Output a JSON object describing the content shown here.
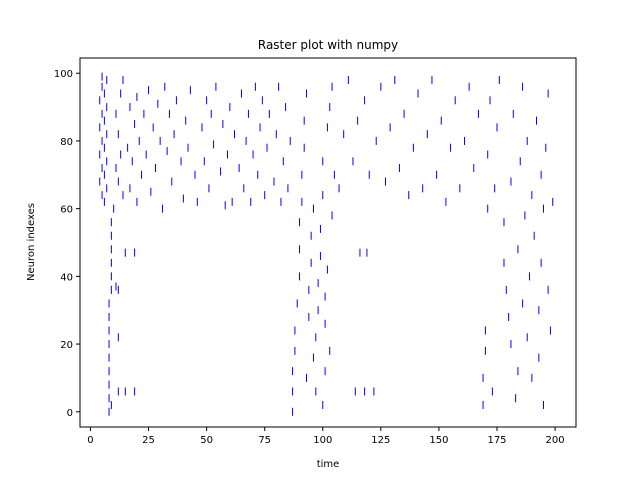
{
  "chart_data": {
    "type": "raster",
    "title": "Raster plot with numpy",
    "xlabel": "time",
    "ylabel": "Neuron indexes",
    "xlim": [
      -4.5,
      209
    ],
    "ylim": [
      -4.5,
      104.5
    ],
    "xticks": [
      0,
      25,
      50,
      75,
      100,
      125,
      150,
      175,
      200
    ],
    "yticks": [
      0,
      20,
      40,
      60,
      80,
      100
    ],
    "grid": false,
    "marker": "|",
    "color": "#0000ff",
    "events": [
      [
        8,
        0
      ],
      [
        9,
        2
      ],
      [
        12,
        6
      ],
      [
        15,
        6
      ],
      [
        19,
        6
      ],
      [
        12,
        22
      ],
      [
        11,
        37
      ],
      [
        12,
        36
      ],
      [
        15,
        47
      ],
      [
        19,
        47
      ],
      [
        10,
        60
      ],
      [
        9,
        56
      ],
      [
        9,
        52
      ],
      [
        9,
        48
      ],
      [
        9,
        44
      ],
      [
        9,
        40
      ],
      [
        9,
        36
      ],
      [
        8,
        32
      ],
      [
        8,
        28
      ],
      [
        8,
        24
      ],
      [
        8,
        20
      ],
      [
        8,
        16
      ],
      [
        8,
        12
      ],
      [
        8,
        8
      ],
      [
        8,
        4
      ],
      [
        5,
        99
      ],
      [
        5,
        96
      ],
      [
        4,
        92
      ],
      [
        5,
        88
      ],
      [
        4,
        84
      ],
      [
        5,
        80
      ],
      [
        4,
        76
      ],
      [
        5,
        72
      ],
      [
        4,
        68
      ],
      [
        5,
        64
      ],
      [
        6,
        62
      ],
      [
        7,
        66
      ],
      [
        6,
        70
      ],
      [
        7,
        74
      ],
      [
        6,
        78
      ],
      [
        7,
        82
      ],
      [
        6,
        86
      ],
      [
        7,
        90
      ],
      [
        6,
        94
      ],
      [
        7,
        98
      ],
      [
        11,
        72
      ],
      [
        11,
        88
      ],
      [
        12,
        82
      ],
      [
        12,
        68
      ],
      [
        13,
        76
      ],
      [
        13,
        94
      ],
      [
        14,
        64
      ],
      [
        14,
        98
      ],
      [
        16,
        78
      ],
      [
        17,
        66
      ],
      [
        17,
        90
      ],
      [
        18,
        74
      ],
      [
        19,
        85
      ],
      [
        20,
        93
      ],
      [
        20,
        62
      ],
      [
        21,
        80
      ],
      [
        22,
        70
      ],
      [
        23,
        88
      ],
      [
        24,
        76
      ],
      [
        25,
        95
      ],
      [
        26,
        65
      ],
      [
        27,
        84
      ],
      [
        28,
        72
      ],
      [
        29,
        91
      ],
      [
        30,
        80
      ],
      [
        31,
        60
      ],
      [
        32,
        96
      ],
      [
        33,
        77
      ],
      [
        34,
        88
      ],
      [
        35,
        68
      ],
      [
        36,
        82
      ],
      [
        37,
        92
      ],
      [
        39,
        74
      ],
      [
        40,
        63
      ],
      [
        41,
        86
      ],
      [
        42,
        78
      ],
      [
        43,
        95
      ],
      [
        45,
        70
      ],
      [
        46,
        62
      ],
      [
        48,
        84
      ],
      [
        49,
        74
      ],
      [
        50,
        92
      ],
      [
        51,
        66
      ],
      [
        52,
        88
      ],
      [
        53,
        79
      ],
      [
        54,
        96
      ],
      [
        56,
        71
      ],
      [
        57,
        85
      ],
      [
        58,
        61
      ],
      [
        59,
        76
      ],
      [
        60,
        90
      ],
      [
        61,
        62
      ],
      [
        62,
        82
      ],
      [
        64,
        72
      ],
      [
        65,
        94
      ],
      [
        66,
        66
      ],
      [
        67,
        80
      ],
      [
        68,
        88
      ],
      [
        69,
        62
      ],
      [
        70,
        76
      ],
      [
        71,
        96
      ],
      [
        72,
        70
      ],
      [
        73,
        84
      ],
      [
        74,
        92
      ],
      [
        75,
        64
      ],
      [
        76,
        78
      ],
      [
        77,
        88
      ],
      [
        79,
        68
      ],
      [
        80,
        82
      ],
      [
        81,
        96
      ],
      [
        82,
        62
      ],
      [
        83,
        74
      ],
      [
        84,
        90
      ],
      [
        85,
        66
      ],
      [
        86,
        80
      ],
      [
        87,
        0
      ],
      [
        87,
        6
      ],
      [
        87,
        12
      ],
      [
        88,
        18
      ],
      [
        88,
        24
      ],
      [
        89,
        32
      ],
      [
        90,
        40
      ],
      [
        90,
        48
      ],
      [
        90,
        56
      ],
      [
        91,
        62
      ],
      [
        91,
        70
      ],
      [
        92,
        78
      ],
      [
        92,
        86
      ],
      [
        93,
        94
      ],
      [
        93,
        10
      ],
      [
        94,
        28
      ],
      [
        94,
        36
      ],
      [
        95,
        44
      ],
      [
        95,
        52
      ],
      [
        96,
        60
      ],
      [
        96,
        16
      ],
      [
        97,
        6
      ],
      [
        97,
        22
      ],
      [
        98,
        30
      ],
      [
        98,
        38
      ],
      [
        99,
        46
      ],
      [
        99,
        54
      ],
      [
        100,
        2
      ],
      [
        100,
        64
      ],
      [
        100,
        74
      ],
      [
        101,
        12
      ],
      [
        101,
        26
      ],
      [
        101,
        34
      ],
      [
        102,
        42
      ],
      [
        102,
        84
      ],
      [
        103,
        18
      ],
      [
        103,
        90
      ],
      [
        104,
        96
      ],
      [
        104,
        58
      ],
      [
        105,
        70
      ],
      [
        107,
        66
      ],
      [
        109,
        82
      ],
      [
        111,
        98
      ],
      [
        113,
        74
      ],
      [
        114,
        6
      ],
      [
        115,
        86
      ],
      [
        116,
        47
      ],
      [
        118,
        6
      ],
      [
        118,
        92
      ],
      [
        119,
        47
      ],
      [
        120,
        70
      ],
      [
        122,
        6
      ],
      [
        123,
        80
      ],
      [
        125,
        96
      ],
      [
        127,
        68
      ],
      [
        129,
        84
      ],
      [
        131,
        98
      ],
      [
        133,
        72
      ],
      [
        135,
        88
      ],
      [
        137,
        64
      ],
      [
        139,
        78
      ],
      [
        141,
        94
      ],
      [
        143,
        66
      ],
      [
        145,
        82
      ],
      [
        147,
        98
      ],
      [
        149,
        70
      ],
      [
        151,
        86
      ],
      [
        153,
        62
      ],
      [
        155,
        78
      ],
      [
        157,
        92
      ],
      [
        159,
        66
      ],
      [
        161,
        80
      ],
      [
        163,
        96
      ],
      [
        165,
        72
      ],
      [
        167,
        88
      ],
      [
        169,
        2
      ],
      [
        169,
        10
      ],
      [
        170,
        18
      ],
      [
        170,
        24
      ],
      [
        171,
        60
      ],
      [
        171,
        76
      ],
      [
        172,
        92
      ],
      [
        173,
        6
      ],
      [
        174,
        66
      ],
      [
        175,
        84
      ],
      [
        176,
        98
      ],
      [
        178,
        56
      ],
      [
        178,
        44
      ],
      [
        179,
        36
      ],
      [
        180,
        28
      ],
      [
        181,
        20
      ],
      [
        181,
        68
      ],
      [
        182,
        88
      ],
      [
        183,
        4
      ],
      [
        184,
        12
      ],
      [
        184,
        48
      ],
      [
        185,
        74
      ],
      [
        186,
        32
      ],
      [
        186,
        96
      ],
      [
        187,
        58
      ],
      [
        188,
        22
      ],
      [
        188,
        80
      ],
      [
        189,
        40
      ],
      [
        190,
        64
      ],
      [
        190,
        10
      ],
      [
        191,
        52
      ],
      [
        192,
        86
      ],
      [
        193,
        16
      ],
      [
        193,
        30
      ],
      [
        194,
        44
      ],
      [
        194,
        70
      ],
      [
        195,
        2
      ],
      [
        195,
        60
      ],
      [
        196,
        78
      ],
      [
        197,
        36
      ],
      [
        197,
        94
      ],
      [
        198,
        24
      ],
      [
        199,
        62
      ]
    ]
  }
}
